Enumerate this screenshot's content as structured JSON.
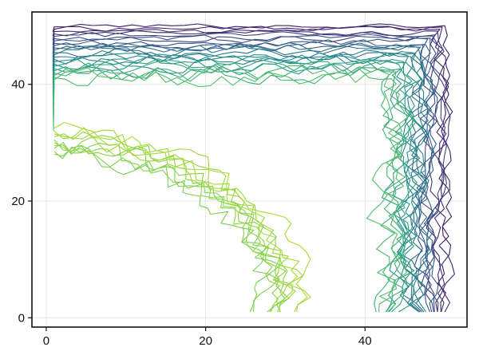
{
  "chart_data": {
    "type": "contour",
    "title": "",
    "xlabel": "",
    "ylabel": "",
    "xlim": [
      -1.8,
      52.8
    ],
    "ylim": [
      -1.6,
      52.4
    ],
    "grid": true,
    "legend": "none",
    "x_ticks": [
      0,
      20,
      40
    ],
    "y_ticks": [
      0,
      20,
      40
    ],
    "x_tick_labels": [
      "0",
      "20",
      "40"
    ],
    "y_tick_labels": [
      "0",
      "20",
      "40"
    ],
    "contour_levels": 24,
    "colormap": [
      "#440154",
      "#3b528b",
      "#21918c",
      "#5ec962",
      "#bddf26"
    ],
    "features": {
      "top_band": {
        "x_range": [
          1,
          50
        ],
        "y_range": [
          41,
          50
        ]
      },
      "right_band": {
        "x_range": [
          40,
          50
        ],
        "y_range": [
          1,
          50
        ]
      },
      "inner_arc": {
        "x_range": [
          1,
          32
        ],
        "y_range": [
          1,
          32
        ]
      }
    }
  }
}
